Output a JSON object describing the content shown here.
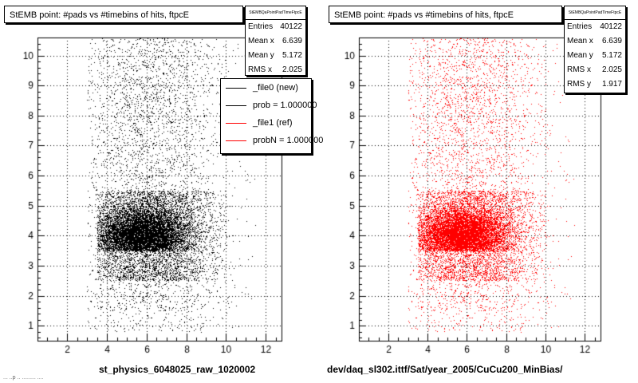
{
  "chart_data": [
    {
      "type": "scatter",
      "title": "StEMB point: #pads vs #timebins of hits, ftpcE",
      "marker_color": "#000000",
      "xlim": [
        0.5,
        12.8
      ],
      "ylim": [
        0.5,
        10.6
      ],
      "x_ticks": [
        "2",
        "4",
        "6",
        "8",
        "10",
        "12"
      ],
      "y_ticks": [
        "1",
        "2",
        "3",
        "4",
        "5",
        "6",
        "7",
        "8",
        "9",
        "10"
      ],
      "grid": true,
      "stats": {
        "header": "StEMBQaPointPadTimeFtpcE",
        "rows": [
          {
            "key": "Entries",
            "value": "40122"
          },
          {
            "key": "Mean x",
            "value": "6.639"
          },
          {
            "key": "Mean y",
            "value": "5.172"
          },
          {
            "key": "RMS x",
            "value": "2.025"
          }
        ]
      },
      "legend": {
        "placement": "top-right",
        "entries": [
          {
            "label": "_file0 (new)",
            "color": "#000000"
          },
          {
            "label": "prob = 1.000000",
            "color": "#000000"
          },
          {
            "label": "_file1 (ref)",
            "color": "#ff0000"
          },
          {
            "label": "probN = 1.000000",
            "color": "#ff0000"
          }
        ]
      },
      "bottom_label": "st_physics_6048025_raw_1020002"
    },
    {
      "type": "scatter",
      "title": "StEMB point: #pads vs #timebins of hits, ftpcE",
      "marker_color": "#ff0000",
      "xlim": [
        0.5,
        12.8
      ],
      "ylim": [
        0.5,
        10.6
      ],
      "x_ticks": [
        "2",
        "4",
        "6",
        "8",
        "10",
        "12"
      ],
      "y_ticks": [
        "1",
        "2",
        "3",
        "4",
        "5",
        "6",
        "7",
        "8",
        "9",
        "10"
      ],
      "grid": true,
      "stats": {
        "header": "StEMBQaPointPadTimeFtpcE",
        "rows": [
          {
            "key": "Entries",
            "value": "40122"
          },
          {
            "key": "Mean x",
            "value": "6.639"
          },
          {
            "key": "Mean y",
            "value": "5.172"
          },
          {
            "key": "RMS x",
            "value": "2.025"
          },
          {
            "key": "RMS y",
            "value": "1.917"
          }
        ]
      },
      "bottom_label": "dev/daq_sl302.ittf/Sat/year_2005/CuCu200_MinBias/"
    }
  ],
  "corner_text": "... ..p .. ......... ...."
}
